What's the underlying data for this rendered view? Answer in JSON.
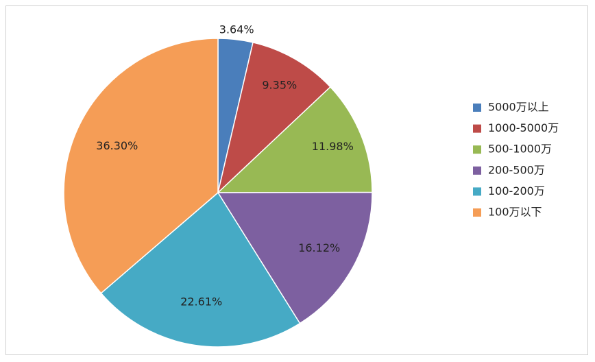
{
  "chart_data": {
    "type": "pie",
    "title": "",
    "categories": [
      "5000万以上",
      "1000-5000万",
      "500-1000万",
      "200-500万",
      "100-200万",
      "100万以下"
    ],
    "values": [
      3.64,
      9.35,
      11.98,
      16.12,
      22.61,
      36.3
    ],
    "data_labels": [
      "3.64%",
      "9.35%",
      "11.98%",
      "16.12%",
      "22.61%",
      "36.30%"
    ],
    "colors": [
      "#4a7ebb",
      "#be4b48",
      "#98b954",
      "#7d60a0",
      "#46aac5",
      "#f59d56"
    ],
    "legend": {
      "placement": "right",
      "items": [
        "5000万以上",
        "1000-5000万",
        "500-1000万",
        "200-500万",
        "100-200万",
        "100万以下"
      ]
    },
    "start_angle": "12 o'clock",
    "direction": "clockwise"
  }
}
